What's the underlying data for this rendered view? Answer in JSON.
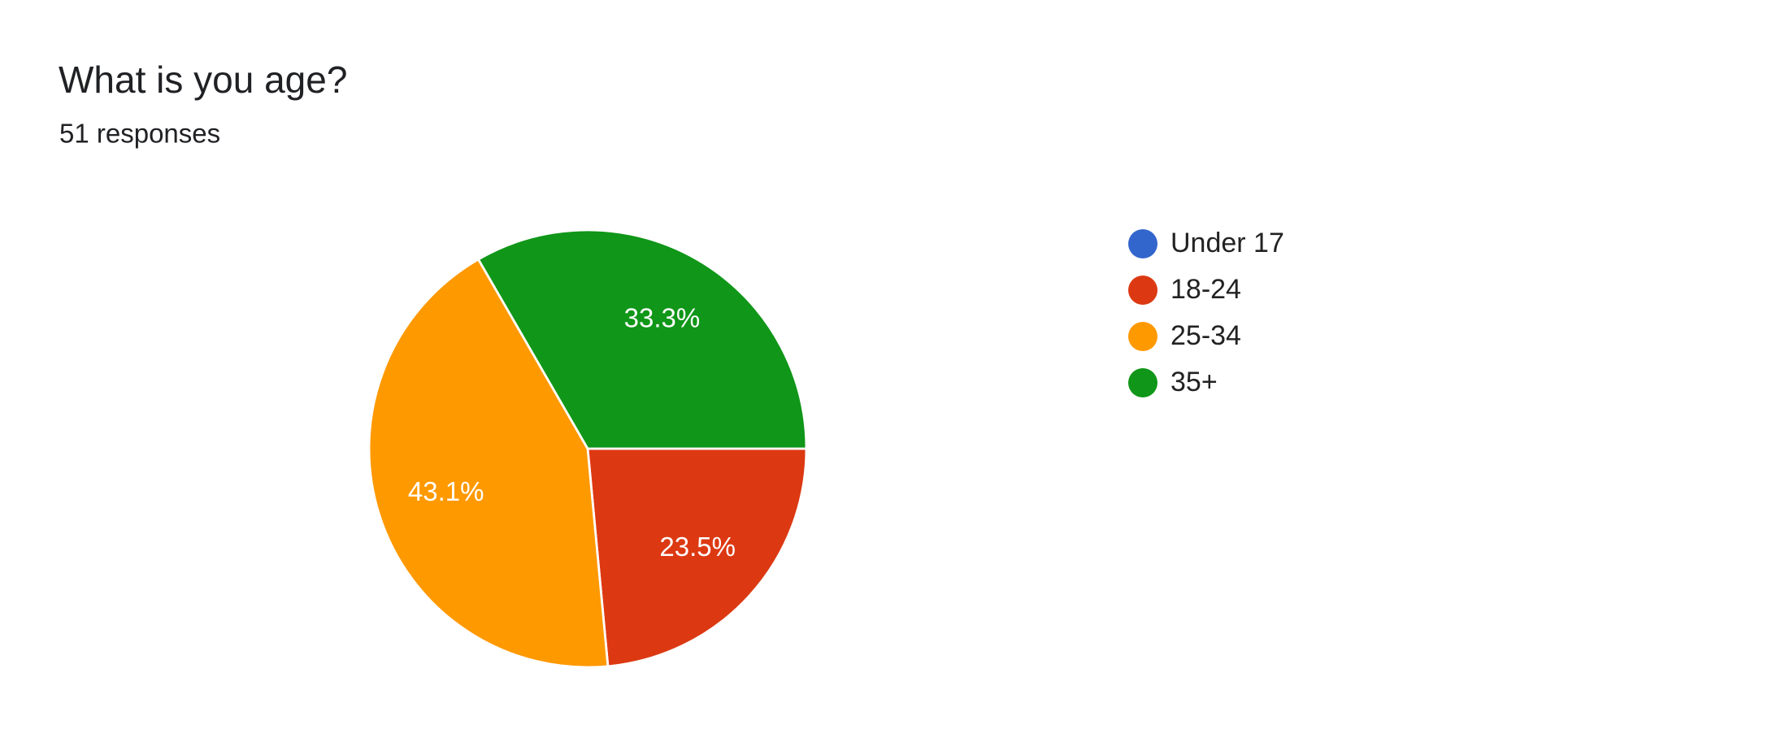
{
  "chart_data": {
    "type": "pie",
    "title": "What is you age?",
    "subtitle": "51 responses",
    "categories": [
      "Under 17",
      "18-24",
      "25-34",
      "35+"
    ],
    "values": [
      0,
      23.5,
      43.1,
      33.3
    ],
    "value_labels": [
      null,
      "23.5%",
      "43.1%",
      "33.3%"
    ],
    "colors": [
      "#3366cc",
      "#dc3912",
      "#ff9900",
      "#109618"
    ],
    "legend": "right"
  }
}
